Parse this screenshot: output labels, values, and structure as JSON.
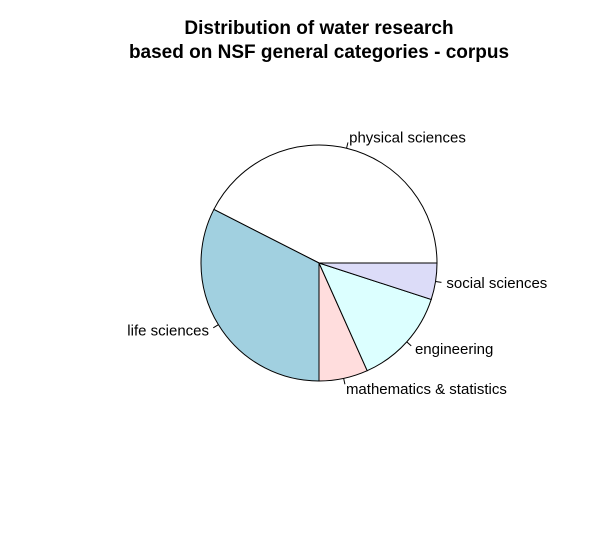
{
  "chart_data": {
    "type": "pie",
    "title": [
      "Distribution of water research",
      "based on NSF general categories - corpus"
    ],
    "start_angle_deg": 0,
    "direction": "counterclockwise",
    "slices": [
      {
        "label": "physical sciences",
        "value": 42.5,
        "color": "#ffffff"
      },
      {
        "label": "life sciences",
        "value": 32.5,
        "color": "#a1d0e0"
      },
      {
        "label": "mathematics & statistics",
        "value": 6.7,
        "color": "#ffdddd"
      },
      {
        "label": "engineering",
        "value": 13.3,
        "color": "#dcffff"
      },
      {
        "label": "social sciences",
        "value": 5.0,
        "color": "#dcdcf8"
      }
    ]
  }
}
